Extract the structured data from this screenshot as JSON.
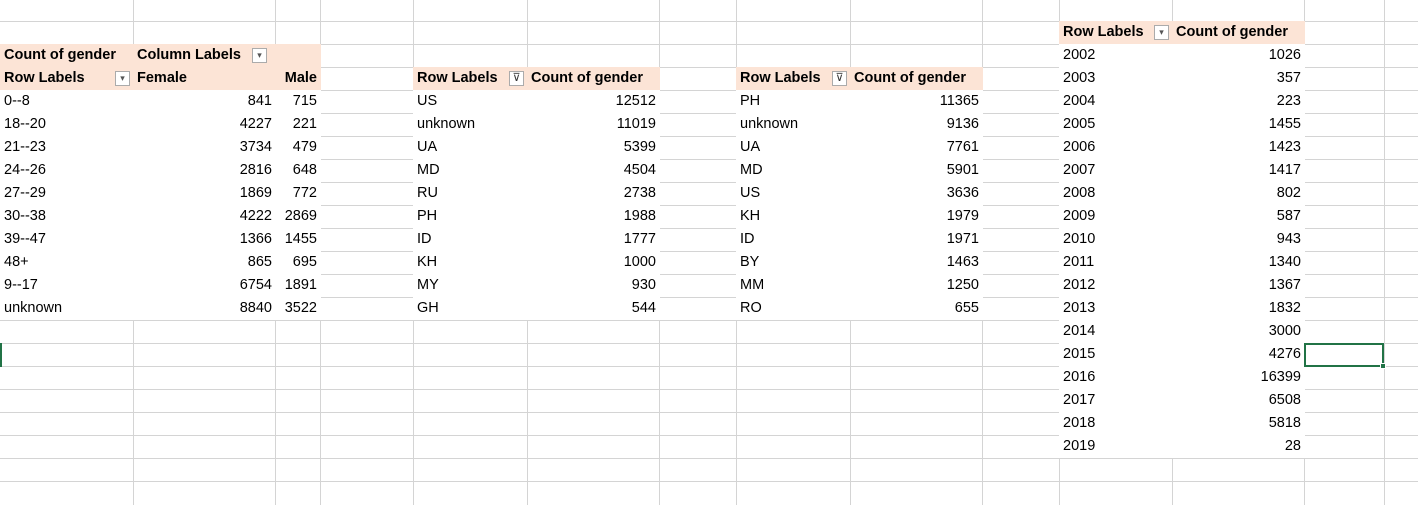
{
  "pivot1": {
    "title": "Count of gender",
    "column_labels": "Column Labels",
    "row_labels": "Row Labels",
    "columns": [
      "Female",
      "Male"
    ],
    "rows": [
      {
        "label": "0--8",
        "female": "841",
        "male": "715"
      },
      {
        "label": "18--20",
        "female": "4227",
        "male": "221"
      },
      {
        "label": "21--23",
        "female": "3734",
        "male": "479"
      },
      {
        "label": "24--26",
        "female": "2816",
        "male": "648"
      },
      {
        "label": "27--29",
        "female": "1869",
        "male": "772"
      },
      {
        "label": "30--38",
        "female": "4222",
        "male": "2869"
      },
      {
        "label": "39--47",
        "female": "1366",
        "male": "1455"
      },
      {
        "label": "48+",
        "female": "865",
        "male": "695"
      },
      {
        "label": "9--17",
        "female": "6754",
        "male": "1891"
      },
      {
        "label": "unknown",
        "female": "8840",
        "male": "3522"
      }
    ]
  },
  "pivot2": {
    "row_labels": "Row Labels",
    "value_header": "Count of gender",
    "rows": [
      {
        "label": "US",
        "value": "12512"
      },
      {
        "label": "unknown",
        "value": "11019"
      },
      {
        "label": "UA",
        "value": "5399"
      },
      {
        "label": "MD",
        "value": "4504"
      },
      {
        "label": "RU",
        "value": "2738"
      },
      {
        "label": "PH",
        "value": "1988"
      },
      {
        "label": "ID",
        "value": "1777"
      },
      {
        "label": "KH",
        "value": "1000"
      },
      {
        "label": "MY",
        "value": "930"
      },
      {
        "label": "GH",
        "value": "544"
      }
    ]
  },
  "pivot3": {
    "row_labels": "Row Labels",
    "value_header": "Count of gender",
    "rows": [
      {
        "label": "PH",
        "value": "11365"
      },
      {
        "label": "unknown",
        "value": "9136"
      },
      {
        "label": "UA",
        "value": "7761"
      },
      {
        "label": "MD",
        "value": "5901"
      },
      {
        "label": "US",
        "value": "3636"
      },
      {
        "label": "KH",
        "value": "1979"
      },
      {
        "label": "ID",
        "value": "1971"
      },
      {
        "label": "BY",
        "value": "1463"
      },
      {
        "label": "MM",
        "value": "1250"
      },
      {
        "label": "RO",
        "value": "655"
      }
    ]
  },
  "pivot4": {
    "row_labels": "Row Labels",
    "value_header": "Count of gender",
    "rows": [
      {
        "label": "2002",
        "value": "1026"
      },
      {
        "label": "2003",
        "value": "357"
      },
      {
        "label": "2004",
        "value": "223"
      },
      {
        "label": "2005",
        "value": "1455"
      },
      {
        "label": "2006",
        "value": "1423"
      },
      {
        "label": "2007",
        "value": "1417"
      },
      {
        "label": "2008",
        "value": "802"
      },
      {
        "label": "2009",
        "value": "587"
      },
      {
        "label": "2010",
        "value": "943"
      },
      {
        "label": "2011",
        "value": "1340"
      },
      {
        "label": "2012",
        "value": "1367"
      },
      {
        "label": "2013",
        "value": "1832"
      },
      {
        "label": "2014",
        "value": "3000"
      },
      {
        "label": "2015",
        "value": "4276"
      },
      {
        "label": "2016",
        "value": "16399"
      },
      {
        "label": "2017",
        "value": "6508"
      },
      {
        "label": "2018",
        "value": "5818"
      },
      {
        "label": "2019",
        "value": "28"
      }
    ]
  },
  "icons": {
    "dropdown": "chevron-down-icon",
    "filter": "filter-dropdown-icon"
  },
  "colors": {
    "pivot_header": "#fce4d6",
    "gridline": "#d4d4d4",
    "selection": "#217346"
  }
}
